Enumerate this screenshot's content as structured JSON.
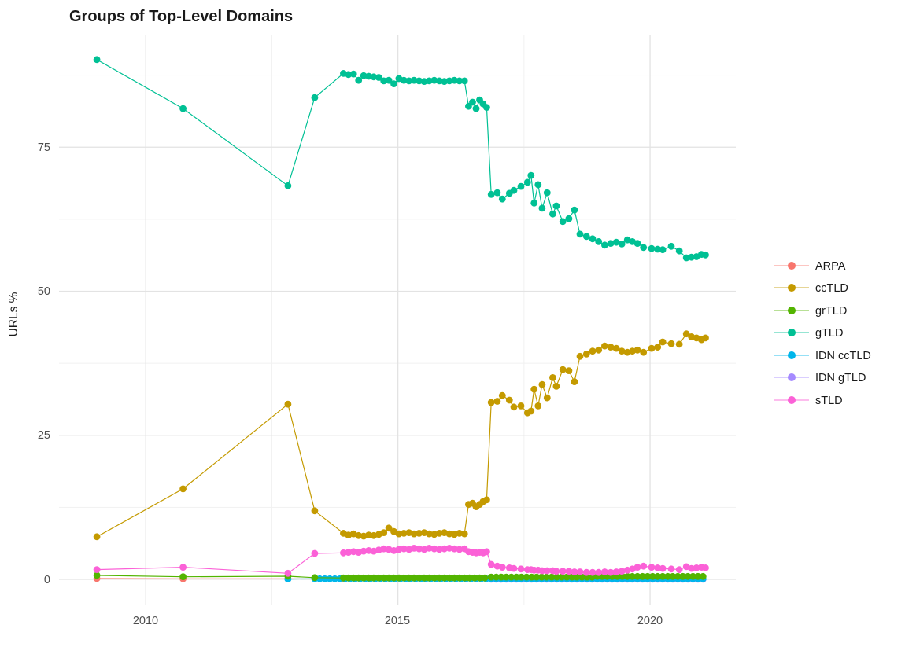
{
  "chart_data": {
    "type": "line",
    "title": "Groups of Top-Level Domains",
    "xlabel": "",
    "ylabel": "URLs %",
    "grid": "on",
    "legend_position": "right",
    "xlim": [
      2008.28,
      2021.7
    ],
    "ylim": [
      -4.5,
      94.4
    ],
    "x_ticks": {
      "major": [
        2010,
        2015,
        2020
      ],
      "minor": [
        2012.5,
        2017.5
      ],
      "labels": [
        "2010",
        "2015",
        "2020"
      ]
    },
    "y_ticks": {
      "major": [
        0,
        25,
        50,
        75
      ],
      "minor": [
        12.5,
        37.5,
        62.5,
        87.5
      ],
      "labels": [
        "0",
        "25",
        "50",
        "75"
      ]
    },
    "legend": {
      "entries": [
        {
          "label": "ARPA",
          "color": "#F8766D"
        },
        {
          "label": "ccTLD",
          "color": "#C49A00"
        },
        {
          "label": "grTLD",
          "color": "#53B400"
        },
        {
          "label": "gTLD",
          "color": "#00C094"
        },
        {
          "label": "IDN ccTLD",
          "color": "#00B6EB"
        },
        {
          "label": "IDN gTLD",
          "color": "#A58AFF"
        },
        {
          "label": "sTLD",
          "color": "#FB61D7"
        }
      ]
    },
    "dense_x": [
      2013.92,
      2014.02,
      2014.12,
      2014.22,
      2014.32,
      2014.42,
      2014.52,
      2014.62,
      2014.72,
      2014.82,
      2014.92,
      2015.02,
      2015.12,
      2015.22,
      2015.32,
      2015.42,
      2015.52,
      2015.62,
      2015.72,
      2015.82,
      2015.92,
      2016.02,
      2016.12,
      2016.22,
      2016.32,
      2016.4,
      2016.48,
      2016.55,
      2016.62,
      2016.69,
      2016.76,
      2016.85,
      2016.97,
      2017.07,
      2017.21,
      2017.3,
      2017.44,
      2017.57,
      2017.64,
      2017.7,
      2017.78,
      2017.86,
      2017.96,
      2018.07,
      2018.14,
      2018.27,
      2018.39,
      2018.5,
      2018.61,
      2018.74,
      2018.86,
      2018.98,
      2019.1,
      2019.22,
      2019.33,
      2019.44,
      2019.55,
      2019.65,
      2019.75,
      2019.87,
      2020.03,
      2020.15,
      2020.25,
      2020.42,
      2020.58,
      2020.72,
      2020.82,
      2020.92,
      2021.02,
      2021.1
    ],
    "series": [
      {
        "name": "ARPA",
        "color": "#F8766D",
        "sparse": [
          [
            2009.03,
            0.15
          ],
          [
            2010.74,
            0.1
          ],
          [
            2012.82,
            0.08
          ],
          [
            2013.87,
            0.05
          ]
        ]
      },
      {
        "name": "IDN gTLD",
        "color": "#A58AFF",
        "runs": [
          {
            "from": 2016.85,
            "to": 2021.1,
            "step": 0.1,
            "y": 0.02
          }
        ]
      },
      {
        "name": "IDN ccTLD",
        "color": "#00B6EB",
        "sparse": [
          [
            2012.82,
            0.05
          ]
        ],
        "runs": [
          {
            "from": 2013.35,
            "to": 2021.1,
            "step": 0.1,
            "y": 0.1
          }
        ]
      },
      {
        "name": "grTLD",
        "color": "#53B400",
        "sparse": [
          [
            2009.03,
            0.7
          ],
          [
            2010.74,
            0.45
          ],
          [
            2012.82,
            0.55
          ],
          [
            2013.35,
            0.3
          ]
        ],
        "runs": [
          {
            "from": 2013.92,
            "to": 2016.76,
            "step": 0.1,
            "y": 0.25
          },
          {
            "from": 2016.85,
            "to": 2018.85,
            "step": 0.1,
            "y": 0.4
          },
          {
            "from": 2018.95,
            "to": 2021.1,
            "step": 0.1,
            "y": 0.5
          }
        ]
      },
      {
        "name": "ccTLD",
        "color": "#C49A00",
        "sparse": [
          [
            2009.03,
            7.4
          ],
          [
            2010.74,
            15.7
          ],
          [
            2012.82,
            30.4
          ],
          [
            2013.35,
            11.9
          ]
        ],
        "dense_y": [
          8.0,
          7.7,
          7.9,
          7.6,
          7.5,
          7.7,
          7.6,
          7.8,
          8.1,
          8.9,
          8.3,
          7.9,
          8.0,
          8.1,
          7.9,
          8.0,
          8.1,
          7.9,
          7.8,
          8.0,
          8.1,
          7.9,
          7.8,
          8.0,
          7.9,
          13.0,
          13.2,
          12.6,
          13.0,
          13.5,
          13.8,
          30.7,
          30.9,
          31.9,
          31.1,
          29.9,
          30.1,
          28.9,
          29.2,
          33.0,
          30.1,
          33.8,
          31.5,
          35.0,
          33.5,
          36.4,
          36.2,
          34.3,
          38.7,
          39.1,
          39.6,
          39.8,
          40.5,
          40.3,
          40.1,
          39.6,
          39.4,
          39.6,
          39.8,
          39.4,
          40.1,
          40.3,
          41.2,
          40.9,
          40.8,
          42.6,
          42.1,
          41.9,
          41.6,
          41.9
        ]
      },
      {
        "name": "gTLD",
        "color": "#00C094",
        "sparse": [
          [
            2009.03,
            90.2
          ],
          [
            2010.74,
            81.7
          ],
          [
            2012.82,
            68.3
          ],
          [
            2013.35,
            83.6
          ]
        ],
        "dense_y": [
          87.8,
          87.6,
          87.7,
          86.6,
          87.4,
          87.3,
          87.2,
          87.1,
          86.5,
          86.6,
          86.0,
          86.9,
          86.6,
          86.5,
          86.6,
          86.5,
          86.4,
          86.5,
          86.6,
          86.5,
          86.4,
          86.5,
          86.6,
          86.5,
          86.5,
          82.1,
          82.8,
          81.7,
          83.2,
          82.5,
          81.9,
          66.8,
          67.1,
          66.0,
          67.0,
          67.5,
          68.2,
          68.9,
          70.1,
          65.3,
          68.5,
          64.4,
          67.1,
          63.4,
          64.8,
          62.1,
          62.6,
          64.1,
          59.9,
          59.5,
          59.1,
          58.6,
          58.0,
          58.3,
          58.5,
          58.2,
          58.9,
          58.6,
          58.3,
          57.6,
          57.4,
          57.3,
          57.2,
          57.8,
          57.0,
          55.8,
          55.9,
          56.0,
          56.4,
          56.3
        ]
      },
      {
        "name": "sTLD",
        "color": "#FB61D7",
        "sparse": [
          [
            2009.03,
            1.7
          ],
          [
            2010.74,
            2.1
          ],
          [
            2012.82,
            1.05
          ],
          [
            2013.35,
            4.5
          ]
        ],
        "dense_y": [
          4.6,
          4.7,
          4.8,
          4.7,
          4.9,
          5.0,
          4.9,
          5.1,
          5.3,
          5.2,
          5.0,
          5.2,
          5.3,
          5.2,
          5.4,
          5.3,
          5.2,
          5.4,
          5.3,
          5.2,
          5.3,
          5.4,
          5.3,
          5.2,
          5.3,
          4.8,
          4.7,
          4.6,
          4.7,
          4.6,
          4.8,
          2.6,
          2.3,
          2.1,
          2.0,
          1.9,
          1.8,
          1.7,
          1.7,
          1.6,
          1.6,
          1.5,
          1.5,
          1.5,
          1.4,
          1.4,
          1.4,
          1.3,
          1.3,
          1.2,
          1.2,
          1.2,
          1.3,
          1.2,
          1.3,
          1.4,
          1.6,
          1.8,
          2.1,
          2.3,
          2.1,
          2.0,
          1.9,
          1.8,
          1.7,
          2.2,
          1.9,
          2.0,
          2.1,
          2.0
        ]
      }
    ],
    "style": {
      "grid_major_color": "#e3e3e3",
      "grid_minor_color": "#f1f1f1",
      "point_radius": 4.4,
      "line_width": 1.2
    }
  }
}
